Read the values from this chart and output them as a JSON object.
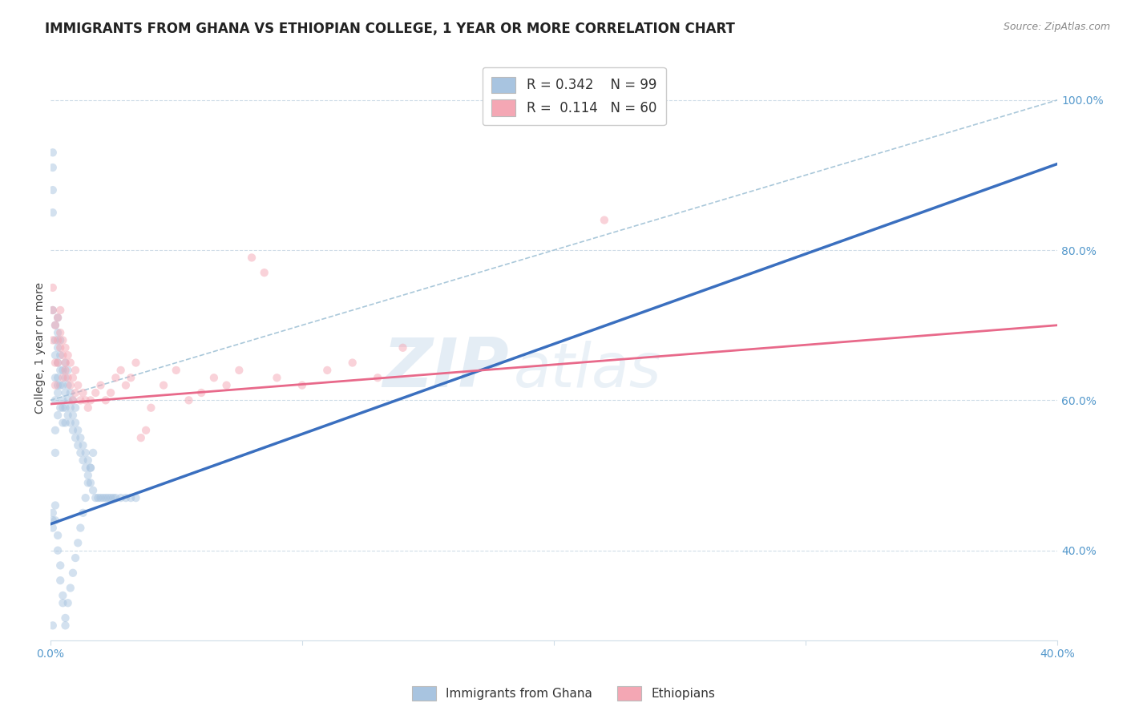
{
  "title": "IMMIGRANTS FROM GHANA VS ETHIOPIAN COLLEGE, 1 YEAR OR MORE CORRELATION CHART",
  "source_text": "Source: ZipAtlas.com",
  "ylabel": "College, 1 year or more",
  "right_ytick_labels": [
    "40.0%",
    "60.0%",
    "80.0%",
    "100.0%"
  ],
  "right_ytick_values": [
    0.4,
    0.6,
    0.8,
    1.0
  ],
  "xlim": [
    0.0,
    0.4
  ],
  "ylim": [
    0.28,
    1.06
  ],
  "xtick_labels": [
    "0.0%",
    "",
    "",
    "",
    "40.0%"
  ],
  "xtick_values": [
    0.0,
    0.1,
    0.2,
    0.3,
    0.4
  ],
  "legend_r1": "R = 0.342",
  "legend_n1": "N = 99",
  "legend_r2": "R =  0.114",
  "legend_n2": "N = 60",
  "color_ghana": "#a8c4e0",
  "color_ethiopia": "#f4a7b4",
  "color_ghana_line": "#3a6fbf",
  "color_ethiopia_line": "#e8698a",
  "color_ref_line": "#aac8da",
  "watermark_zip": "ZIP",
  "watermark_atlas": "atlas",
  "watermark_color_zip": "#c5d8ea",
  "watermark_color_atlas": "#c5d8ea",
  "background_color": "#ffffff",
  "grid_color": "#d0dde8",
  "ghana_x": [
    0.001,
    0.001,
    0.001,
    0.001,
    0.001,
    0.002,
    0.002,
    0.002,
    0.002,
    0.002,
    0.002,
    0.002,
    0.003,
    0.003,
    0.003,
    0.003,
    0.003,
    0.003,
    0.003,
    0.003,
    0.004,
    0.004,
    0.004,
    0.004,
    0.004,
    0.005,
    0.005,
    0.005,
    0.005,
    0.005,
    0.006,
    0.006,
    0.006,
    0.006,
    0.006,
    0.007,
    0.007,
    0.007,
    0.007,
    0.008,
    0.008,
    0.008,
    0.009,
    0.009,
    0.009,
    0.01,
    0.01,
    0.01,
    0.011,
    0.011,
    0.012,
    0.012,
    0.013,
    0.013,
    0.014,
    0.014,
    0.015,
    0.015,
    0.016,
    0.016,
    0.017,
    0.018,
    0.019,
    0.02,
    0.021,
    0.022,
    0.023,
    0.024,
    0.025,
    0.026,
    0.028,
    0.03,
    0.032,
    0.034,
    0.001,
    0.001,
    0.001,
    0.002,
    0.002,
    0.003,
    0.003,
    0.004,
    0.004,
    0.005,
    0.005,
    0.006,
    0.006,
    0.007,
    0.008,
    0.009,
    0.01,
    0.011,
    0.012,
    0.013,
    0.014,
    0.015,
    0.016,
    0.017,
    0.001
  ],
  "ghana_y": [
    0.72,
    0.85,
    0.88,
    0.91,
    0.93,
    0.6,
    0.63,
    0.66,
    0.68,
    0.7,
    0.56,
    0.53,
    0.58,
    0.61,
    0.63,
    0.65,
    0.67,
    0.69,
    0.71,
    0.62,
    0.59,
    0.62,
    0.64,
    0.66,
    0.68,
    0.57,
    0.6,
    0.62,
    0.64,
    0.59,
    0.57,
    0.59,
    0.61,
    0.63,
    0.65,
    0.58,
    0.6,
    0.62,
    0.64,
    0.57,
    0.59,
    0.61,
    0.56,
    0.58,
    0.6,
    0.55,
    0.57,
    0.59,
    0.54,
    0.56,
    0.53,
    0.55,
    0.52,
    0.54,
    0.51,
    0.53,
    0.5,
    0.52,
    0.49,
    0.51,
    0.48,
    0.47,
    0.47,
    0.47,
    0.47,
    0.47,
    0.47,
    0.47,
    0.47,
    0.47,
    0.47,
    0.47,
    0.47,
    0.47,
    0.45,
    0.44,
    0.43,
    0.46,
    0.44,
    0.42,
    0.4,
    0.38,
    0.36,
    0.34,
    0.33,
    0.31,
    0.3,
    0.33,
    0.35,
    0.37,
    0.39,
    0.41,
    0.43,
    0.45,
    0.47,
    0.49,
    0.51,
    0.53,
    0.3
  ],
  "ethiopia_x": [
    0.001,
    0.001,
    0.001,
    0.002,
    0.002,
    0.002,
    0.003,
    0.003,
    0.003,
    0.004,
    0.004,
    0.004,
    0.005,
    0.005,
    0.005,
    0.006,
    0.006,
    0.006,
    0.007,
    0.007,
    0.008,
    0.008,
    0.009,
    0.009,
    0.01,
    0.01,
    0.011,
    0.012,
    0.013,
    0.014,
    0.015,
    0.016,
    0.018,
    0.02,
    0.022,
    0.024,
    0.026,
    0.028,
    0.03,
    0.032,
    0.034,
    0.036,
    0.038,
    0.04,
    0.045,
    0.05,
    0.055,
    0.06,
    0.065,
    0.07,
    0.075,
    0.08,
    0.085,
    0.09,
    0.1,
    0.11,
    0.12,
    0.13,
    0.14,
    0.22
  ],
  "ethiopia_y": [
    0.72,
    0.75,
    0.68,
    0.65,
    0.62,
    0.7,
    0.68,
    0.71,
    0.65,
    0.67,
    0.69,
    0.72,
    0.66,
    0.63,
    0.68,
    0.64,
    0.67,
    0.65,
    0.63,
    0.66,
    0.62,
    0.65,
    0.63,
    0.6,
    0.61,
    0.64,
    0.62,
    0.6,
    0.61,
    0.6,
    0.59,
    0.6,
    0.61,
    0.62,
    0.6,
    0.61,
    0.63,
    0.64,
    0.62,
    0.63,
    0.65,
    0.55,
    0.56,
    0.59,
    0.62,
    0.64,
    0.6,
    0.61,
    0.63,
    0.62,
    0.64,
    0.79,
    0.77,
    0.63,
    0.62,
    0.64,
    0.65,
    0.63,
    0.67,
    0.84
  ],
  "ghana_line_x": [
    0.0,
    0.4
  ],
  "ghana_line_y": [
    0.435,
    0.915
  ],
  "ethiopia_line_x": [
    0.0,
    0.4
  ],
  "ethiopia_line_y": [
    0.595,
    0.7
  ],
  "ref_line_x": [
    0.0,
    0.4
  ],
  "ref_line_y": [
    0.6,
    1.0
  ],
  "title_fontsize": 12,
  "axis_label_fontsize": 10,
  "tick_fontsize": 10,
  "legend_fontsize": 12,
  "scatter_size": 55,
  "scatter_alpha": 0.5,
  "title_color": "#222222",
  "tick_color": "#5599cc"
}
